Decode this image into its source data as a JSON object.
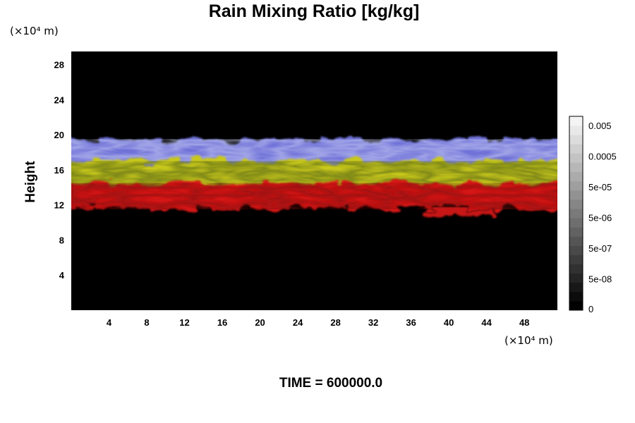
{
  "chart_data": {
    "type": "heatmap",
    "title": "Rain Mixing Ratio [kg/kg]",
    "ylabel": "Height",
    "xlabel": "",
    "x_unit_label": "(×10⁴ m)",
    "y_unit_label": "(×10⁴ m)",
    "xlim": [
      0,
      51.5
    ],
    "ylim": [
      0,
      29.5
    ],
    "x_ticks": [
      "4",
      "8",
      "12",
      "16",
      "20",
      "24",
      "28",
      "32",
      "36",
      "40",
      "44",
      "48"
    ],
    "y_ticks": [
      "4",
      "8",
      "12",
      "16",
      "20",
      "24",
      "28"
    ],
    "background_color": "#000000",
    "layers": [
      {
        "color": "#d41414",
        "y_bottom": 11.5,
        "y_top": 14.5,
        "x_start": 0,
        "x_end": 51.5
      },
      {
        "color": "#c8c81e",
        "y_bottom": 13.5,
        "y_top": 17.0,
        "x_start": 0,
        "x_end": 51.5
      },
      {
        "color": "#6f72d8",
        "y_bottom": 16.5,
        "y_top": 19.5,
        "x_start": 0,
        "x_end": 51.5
      },
      {
        "color": "#c81414",
        "y_bottom": 10.7,
        "y_top": 11.5,
        "x_start": 37.5,
        "x_end": 45
      }
    ],
    "colorbar": {
      "labels": [
        "0.005",
        "0.0005",
        "5e-05",
        "5e-06",
        "5e-07",
        "5e-08",
        "0"
      ],
      "n_levels": 21,
      "color_low": "#000000",
      "color_high": "#f4f4f4"
    },
    "footer": "TIME = 600000.0"
  }
}
